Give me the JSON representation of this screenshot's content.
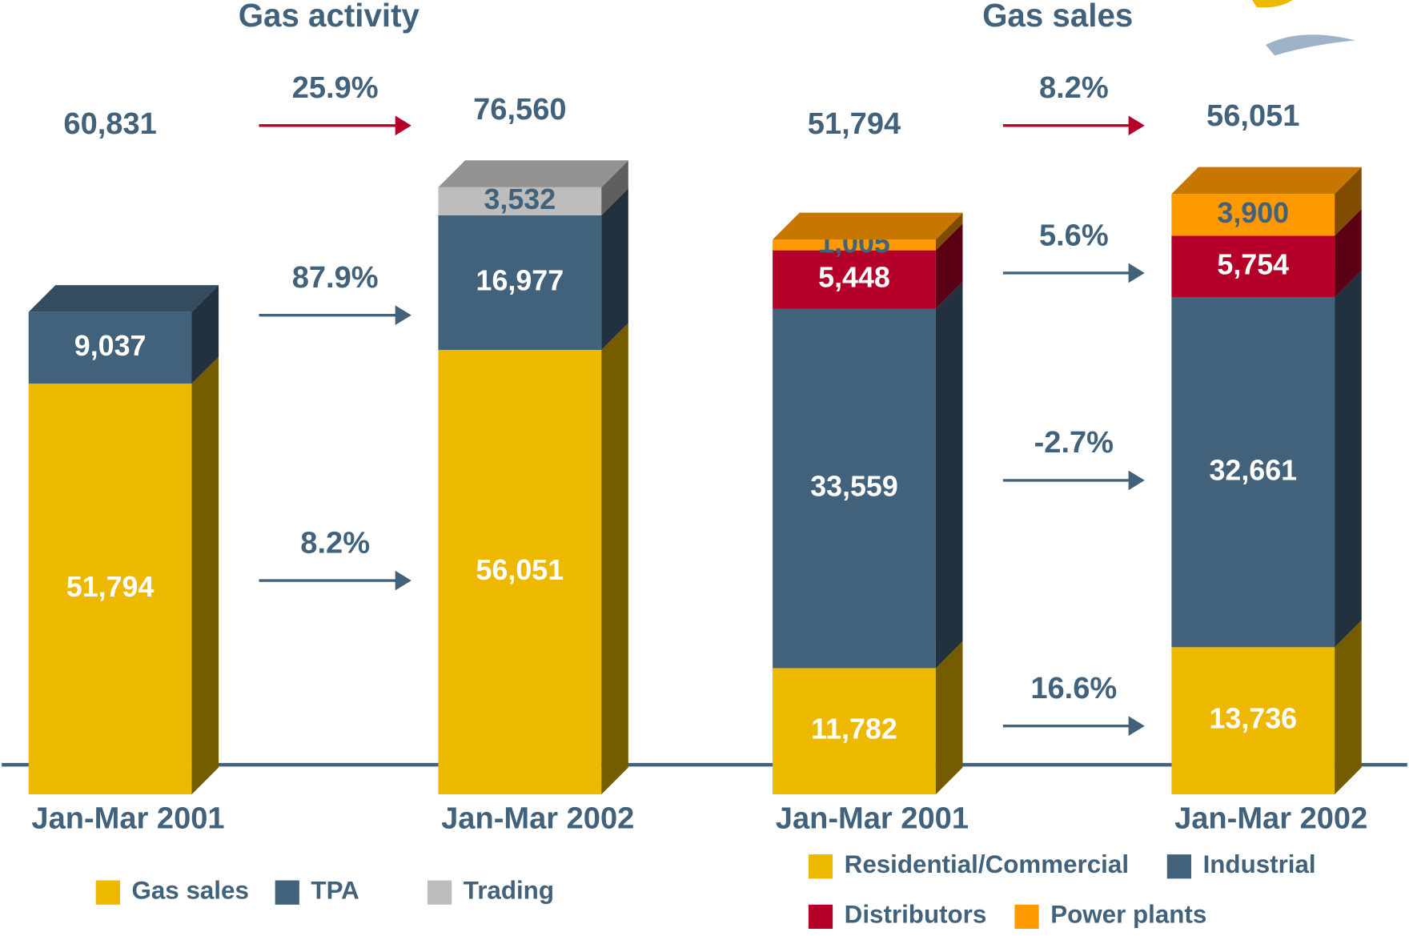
{
  "chart_data": [
    {
      "type": "bar",
      "stacked": true,
      "title": "Gas activity",
      "categories": [
        "Jan-Mar 2001",
        "Jan-Mar 2002"
      ],
      "ylim": [
        0,
        77000
      ],
      "totals": [
        60831,
        76560
      ],
      "total_labels": [
        "60,831",
        "76,560"
      ],
      "total_change_label": "25.9%",
      "series": [
        {
          "name": "Gas sales",
          "color": "#ecb800",
          "label_color": "#ffffff",
          "values": [
            51794,
            56051
          ],
          "value_labels": [
            "51,794",
            "56,051"
          ],
          "change_label": "8.2%"
        },
        {
          "name": "TPA",
          "color": "#41627a",
          "label_color": "#ffffff",
          "values": [
            9037,
            16977
          ],
          "value_labels": [
            "9,037",
            "16,977"
          ],
          "change_label": "87.9%"
        },
        {
          "name": "Trading",
          "color": "#bdbdbd",
          "label_color": "#41627a",
          "values": [
            null,
            3532
          ],
          "value_labels": [
            null,
            "3,532"
          ]
        }
      ]
    },
    {
      "type": "bar",
      "stacked": true,
      "title": "Gas sales",
      "categories": [
        "Jan-Mar 2001",
        "Jan-Mar 2002"
      ],
      "ylim": [
        0,
        57000
      ],
      "totals": [
        51794,
        56051
      ],
      "total_labels": [
        "51,794",
        "56,051"
      ],
      "total_change_label": "8.2%",
      "series": [
        {
          "name": "Residential/Commercial",
          "color": "#ecb800",
          "label_color": "#ffffff",
          "values": [
            11782,
            13736
          ],
          "value_labels": [
            "11,782",
            "13,736"
          ],
          "change_label": "16.6%"
        },
        {
          "name": "Industrial",
          "color": "#41627a",
          "label_color": "#ffffff",
          "values": [
            33559,
            32661
          ],
          "value_labels": [
            "33,559",
            "32,661"
          ],
          "change_label": "-2.7%"
        },
        {
          "name": "Distributors",
          "color": "#b5002a",
          "label_color": "#ffffff",
          "values": [
            5448,
            5754
          ],
          "value_labels": [
            "5,448",
            "5,754"
          ],
          "change_label": "5.6%"
        },
        {
          "name": "Power plants",
          "color": "#ff9900",
          "label_color": "#41627a",
          "values": [
            1005,
            3900
          ],
          "value_labels": [
            "1,005",
            "3,900"
          ]
        }
      ]
    }
  ]
}
